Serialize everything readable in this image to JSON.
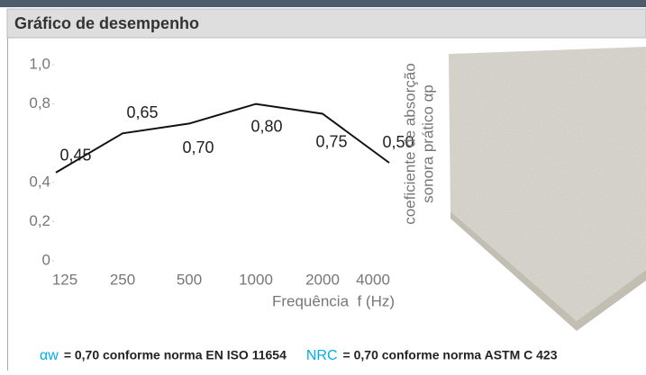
{
  "header": {
    "title": "Gráfico de desempenho"
  },
  "chart_data": {
    "type": "line",
    "categories": [
      "125",
      "250",
      "500",
      "1000",
      "2000",
      "4000"
    ],
    "values": [
      0.45,
      0.65,
      0.7,
      0.8,
      0.75,
      0.5
    ],
    "value_labels": [
      "0,45",
      "0,65",
      "0,70",
      "0,80",
      "0,75",
      "0,50"
    ],
    "color": "#111111",
    "ylabel": [
      "coeficiente de absorção",
      "sonora prático αp"
    ],
    "xlabel": "Frequência  f (Hz)",
    "ylim": [
      0,
      1.0
    ],
    "yticks": [
      {
        "value": 1.0,
        "label": "1,0"
      },
      {
        "value": 0.8,
        "label": "0,8"
      },
      {
        "value": 0.4,
        "label": "0,4"
      },
      {
        "value": 0.2,
        "label": "0,2"
      },
      0
    ],
    "grid": false
  },
  "footer": {
    "items": [
      {
        "symbol": "αw",
        "text": "= 0,70 conforme norma EN ISO 11654"
      },
      {
        "symbol": "NRC",
        "text": "= 0,70 conforme norma ASTM C 423"
      }
    ]
  }
}
